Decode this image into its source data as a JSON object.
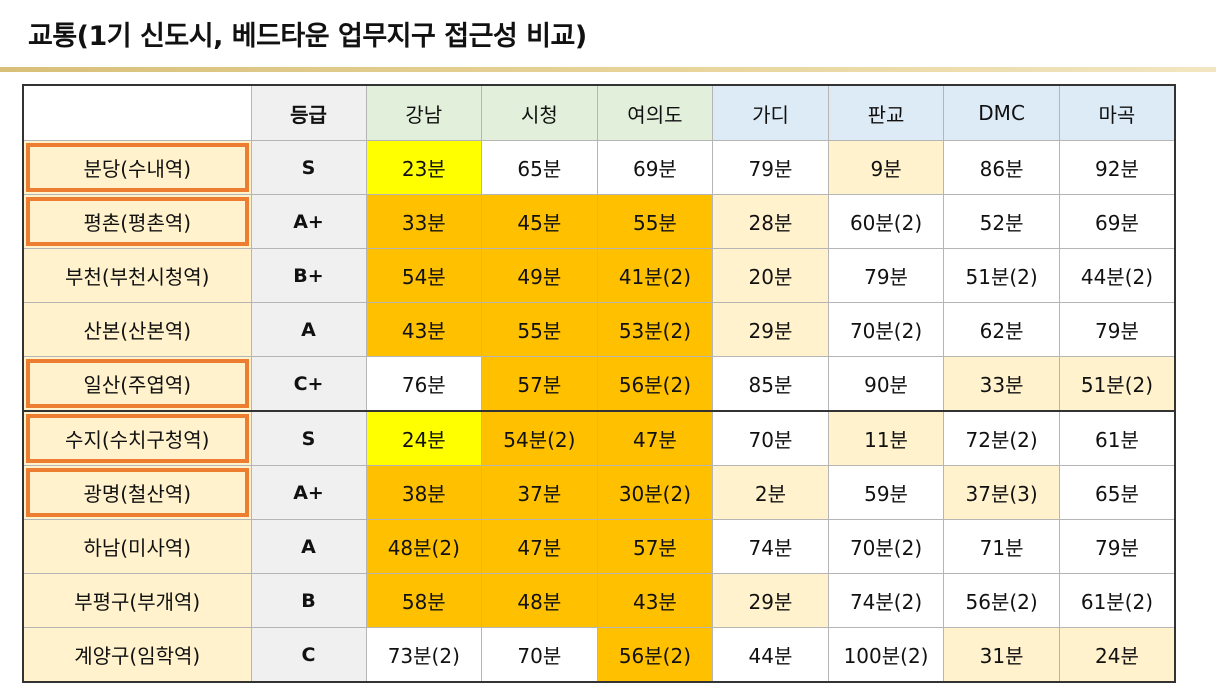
{
  "title": "교통(1기 신도시, 베드타운 업무지구 접근성 비교)",
  "colors": {
    "header_green": "#e2efda",
    "header_blue": "#ddebf7",
    "row_label": "#fff2cc",
    "yellow": "#ffff00",
    "orange": "#ffc000",
    "cream": "#fff2cc",
    "highlight_border": "#ed7d31"
  },
  "table": {
    "headers": [
      "",
      "등급",
      "강남",
      "시청",
      "여의도",
      "가디",
      "판교",
      "DMC",
      "마곡"
    ],
    "rows": [
      {
        "label": "분당(수내역)",
        "highlighted": true,
        "grade": "S",
        "cells": [
          {
            "v": "23분",
            "c": "yellow"
          },
          {
            "v": "65분",
            "c": "white"
          },
          {
            "v": "69분",
            "c": "white"
          },
          {
            "v": "79분",
            "c": "white"
          },
          {
            "v": "9분",
            "c": "cream"
          },
          {
            "v": "86분",
            "c": "white"
          },
          {
            "v": "92분",
            "c": "white"
          }
        ]
      },
      {
        "label": "평촌(평촌역)",
        "highlighted": true,
        "grade": "A+",
        "cells": [
          {
            "v": "33분",
            "c": "orange"
          },
          {
            "v": "45분",
            "c": "orange"
          },
          {
            "v": "55분",
            "c": "orange"
          },
          {
            "v": "28분",
            "c": "cream"
          },
          {
            "v": "60분(2)",
            "c": "white"
          },
          {
            "v": "52분",
            "c": "white"
          },
          {
            "v": "69분",
            "c": "white"
          }
        ]
      },
      {
        "label": "부천(부천시청역)",
        "highlighted": false,
        "grade": "B+",
        "cells": [
          {
            "v": "54분",
            "c": "orange"
          },
          {
            "v": "49분",
            "c": "orange"
          },
          {
            "v": "41분(2)",
            "c": "orange"
          },
          {
            "v": "20분",
            "c": "cream"
          },
          {
            "v": "79분",
            "c": "white"
          },
          {
            "v": "51분(2)",
            "c": "white"
          },
          {
            "v": "44분(2)",
            "c": "white"
          }
        ]
      },
      {
        "label": "산본(산본역)",
        "highlighted": false,
        "grade": "A",
        "cells": [
          {
            "v": "43분",
            "c": "orange"
          },
          {
            "v": "55분",
            "c": "orange"
          },
          {
            "v": "53분(2)",
            "c": "orange"
          },
          {
            "v": "29분",
            "c": "cream"
          },
          {
            "v": "70분(2)",
            "c": "white"
          },
          {
            "v": "62분",
            "c": "white"
          },
          {
            "v": "79분",
            "c": "white"
          }
        ]
      },
      {
        "label": "일산(주엽역)",
        "highlighted": true,
        "grade": "C+",
        "cells": [
          {
            "v": "76분",
            "c": "white"
          },
          {
            "v": "57분",
            "c": "orange"
          },
          {
            "v": "56분(2)",
            "c": "orange"
          },
          {
            "v": "85분",
            "c": "white"
          },
          {
            "v": "90분",
            "c": "white"
          },
          {
            "v": "33분",
            "c": "cream"
          },
          {
            "v": "51분(2)",
            "c": "cream"
          }
        ]
      },
      {
        "label": "수지(수치구청역)",
        "highlighted": true,
        "grade": "S",
        "cells": [
          {
            "v": "24분",
            "c": "yellow"
          },
          {
            "v": "54분(2)",
            "c": "orange"
          },
          {
            "v": "47분",
            "c": "orange"
          },
          {
            "v": "70분",
            "c": "white"
          },
          {
            "v": "11분",
            "c": "cream"
          },
          {
            "v": "72분(2)",
            "c": "white"
          },
          {
            "v": "61분",
            "c": "white"
          }
        ]
      },
      {
        "label": "광명(철산역)",
        "highlighted": true,
        "grade": "A+",
        "cells": [
          {
            "v": "38분",
            "c": "orange"
          },
          {
            "v": "37분",
            "c": "orange"
          },
          {
            "v": "30분(2)",
            "c": "orange"
          },
          {
            "v": "2분",
            "c": "cream"
          },
          {
            "v": "59분",
            "c": "white"
          },
          {
            "v": "37분(3)",
            "c": "cream"
          },
          {
            "v": "65분",
            "c": "white"
          }
        ]
      },
      {
        "label": "하남(미사역)",
        "highlighted": false,
        "grade": "A",
        "cells": [
          {
            "v": "48분(2)",
            "c": "orange"
          },
          {
            "v": "47분",
            "c": "orange"
          },
          {
            "v": "57분",
            "c": "orange"
          },
          {
            "v": "74분",
            "c": "white"
          },
          {
            "v": "70분(2)",
            "c": "white"
          },
          {
            "v": "71분",
            "c": "white"
          },
          {
            "v": "79분",
            "c": "white"
          }
        ]
      },
      {
        "label": "부평구(부개역)",
        "highlighted": false,
        "grade": "B",
        "cells": [
          {
            "v": "58분",
            "c": "orange"
          },
          {
            "v": "48분",
            "c": "orange"
          },
          {
            "v": "43분",
            "c": "orange"
          },
          {
            "v": "29분",
            "c": "cream"
          },
          {
            "v": "74분(2)",
            "c": "white"
          },
          {
            "v": "56분(2)",
            "c": "white"
          },
          {
            "v": "61분(2)",
            "c": "white"
          }
        ]
      },
      {
        "label": "계양구(임학역)",
        "highlighted": false,
        "grade": "C",
        "cells": [
          {
            "v": "73분(2)",
            "c": "white"
          },
          {
            "v": "70분",
            "c": "white"
          },
          {
            "v": "56분(2)",
            "c": "orange"
          },
          {
            "v": "44분",
            "c": "white"
          },
          {
            "v": "100분(2)",
            "c": "white"
          },
          {
            "v": "31분",
            "c": "cream"
          },
          {
            "v": "24분",
            "c": "cream"
          }
        ]
      }
    ]
  }
}
